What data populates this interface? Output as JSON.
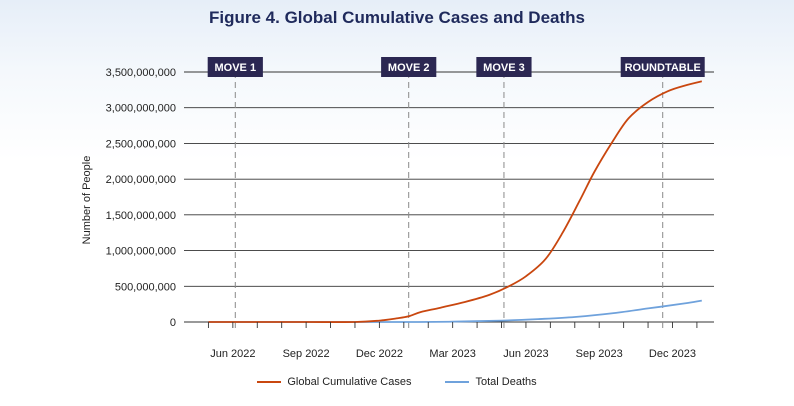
{
  "chart_data": {
    "type": "line",
    "title": "Figure 4. Global Cumulative Cases and Deaths",
    "xlabel": "",
    "ylabel": "Number of People",
    "ylim": [
      0,
      3500000000
    ],
    "y_ticks": [
      0,
      500000000,
      1000000000,
      1500000000,
      2000000000,
      2500000000,
      3000000000,
      3500000000
    ],
    "y_tick_labels": [
      "0",
      "500,000,000",
      "1,000,000,000",
      "1,500,000,000",
      "2,000,000,000",
      "2,500,000,000",
      "3,000,000,000",
      "3,500,000,000"
    ],
    "x_range_months": [
      -1,
      20.7
    ],
    "x_ticks": [
      {
        "label": "Jun 2022",
        "month": 1
      },
      {
        "label": "Sep 2022",
        "month": 4
      },
      {
        "label": "Dec 2022",
        "month": 7
      },
      {
        "label": "Mar 2023",
        "month": 10
      },
      {
        "label": "Jun 2023",
        "month": 13
      },
      {
        "label": "Sep 2023",
        "month": 16
      },
      {
        "label": "Dec 2023",
        "month": 19
      }
    ],
    "markers": [
      {
        "label": "MOVE 1",
        "month": 1.1
      },
      {
        "label": "MOVE 2",
        "month": 8.2
      },
      {
        "label": "MOVE 3",
        "month": 12.1
      },
      {
        "label": "ROUNDTABLE",
        "month": 18.6
      }
    ],
    "grid": true,
    "legend_position": "bottom",
    "series": [
      {
        "name": "Global Cumulative Cases",
        "color": "#c9470f",
        "points": [
          [
            0,
            0
          ],
          [
            2,
            0
          ],
          [
            4,
            0
          ],
          [
            6,
            0
          ],
          [
            7,
            20000000
          ],
          [
            7.7,
            50000000
          ],
          [
            8.2,
            80000000
          ],
          [
            8.7,
            140000000
          ],
          [
            9.5,
            200000000
          ],
          [
            10.5,
            280000000
          ],
          [
            11.5,
            380000000
          ],
          [
            12.3,
            500000000
          ],
          [
            13,
            640000000
          ],
          [
            13.8,
            880000000
          ],
          [
            14.5,
            1250000000
          ],
          [
            15.2,
            1700000000
          ],
          [
            15.8,
            2100000000
          ],
          [
            16.5,
            2500000000
          ],
          [
            17.2,
            2850000000
          ],
          [
            18,
            3080000000
          ],
          [
            18.8,
            3230000000
          ],
          [
            19.5,
            3310000000
          ],
          [
            20.2,
            3370000000
          ]
        ]
      },
      {
        "name": "Total Deaths",
        "color": "#6fa2dc",
        "points": [
          [
            0,
            0
          ],
          [
            4,
            0
          ],
          [
            8,
            0
          ],
          [
            10,
            5000000
          ],
          [
            12,
            20000000
          ],
          [
            13.5,
            40000000
          ],
          [
            15,
            70000000
          ],
          [
            16.5,
            120000000
          ],
          [
            18,
            190000000
          ],
          [
            19.5,
            260000000
          ],
          [
            20.2,
            300000000
          ]
        ]
      }
    ]
  }
}
